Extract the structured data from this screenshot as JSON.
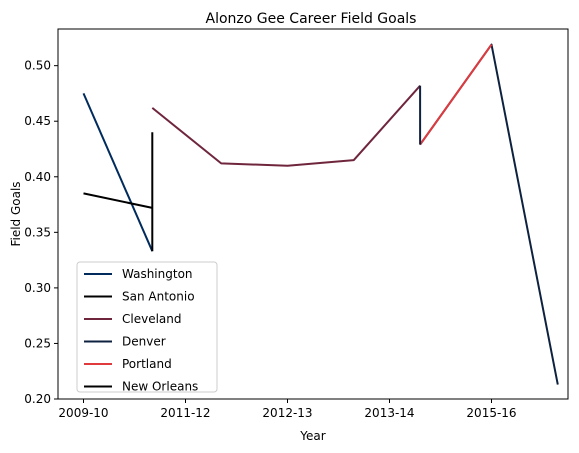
{
  "chart_data": {
    "type": "line",
    "title": "Alonzo Gee Career Field Goals",
    "xlabel": "Year",
    "ylabel": "Field Goals",
    "x_tick_labels": [
      "2009-10",
      "2011-12",
      "2012-13",
      "2013-14",
      "2015-16"
    ],
    "x_tick_positions": [
      0,
      2,
      4,
      6,
      8
    ],
    "xlim": [
      -0.5,
      9.5
    ],
    "ylim": [
      0.2,
      0.533
    ],
    "y_ticks": [
      0.2,
      0.25,
      0.3,
      0.35,
      0.4,
      0.45,
      0.5
    ],
    "y_tick_labels": [
      "0.20",
      "0.25",
      "0.30",
      "0.35",
      "0.40",
      "0.45",
      "0.50"
    ],
    "grid": false,
    "legend_position": "lower-left",
    "series": [
      {
        "name": "Washington",
        "color": "#002B5C",
        "x": [
          0,
          1.35
        ],
        "y": [
          0.475,
          0.333
        ]
      },
      {
        "name": "San Antonio",
        "color": "#000000",
        "x": [
          0,
          1.35
        ],
        "y": [
          0.385,
          0.372
        ]
      },
      {
        "name": "Cleveland",
        "color": "#6F263D",
        "x": [
          1.35,
          2.7,
          4.0,
          5.3,
          6.6
        ],
        "y": [
          0.462,
          0.412,
          0.41,
          0.415,
          0.482
        ]
      },
      {
        "name": "Denver",
        "color": "#0E2240",
        "x": [
          6.6,
          8.0,
          9.3
        ],
        "y": [
          0.429,
          0.519,
          0.213
        ]
      },
      {
        "name": "Portland",
        "color": "#E03A3E",
        "x": [
          6.6,
          8.0
        ],
        "y": [
          0.429,
          0.519
        ]
      },
      {
        "name": "New Orleans",
        "color": "#000000",
        "x": [
          1.35,
          1.35
        ],
        "y": [
          0.333,
          0.44
        ]
      }
    ],
    "connectors": [
      {
        "color": "#0E2240",
        "x": [
          6.6,
          6.6
        ],
        "y": [
          0.482,
          0.429
        ]
      }
    ]
  }
}
